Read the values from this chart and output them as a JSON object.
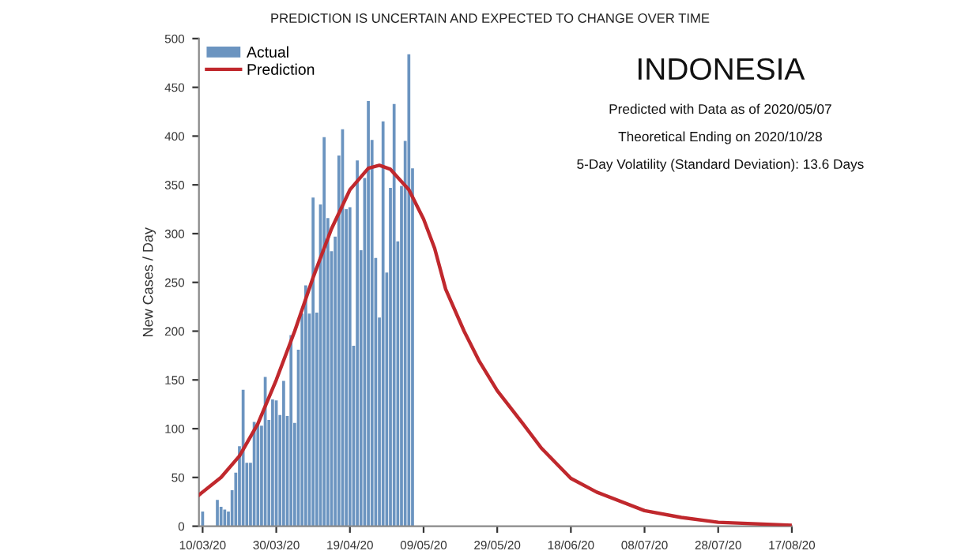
{
  "chart_data": {
    "type": "bar",
    "title": "PREDICTION IS UNCERTAIN AND EXPECTED TO CHANGE OVER TIME",
    "ylabel": "New Cases / Day",
    "annotations": [
      "INDONESIA",
      "Predicted with Data as of 2020/05/07",
      "Theoretical Ending on 2020/10/28",
      "5-Day Volatility (Standard Deviation): 13.6 Days"
    ],
    "xlim": [
      "2020-03-09",
      "2020-08-17"
    ],
    "xticks": [
      {
        "value": "2020-03-10",
        "label": "10/03/20"
      },
      {
        "value": "2020-03-30",
        "label": "30/03/20"
      },
      {
        "value": "2020-04-19",
        "label": "19/04/20"
      },
      {
        "value": "2020-05-09",
        "label": "09/05/20"
      },
      {
        "value": "2020-05-29",
        "label": "29/05/20"
      },
      {
        "value": "2020-06-18",
        "label": "18/06/20"
      },
      {
        "value": "2020-07-08",
        "label": "08/07/20"
      },
      {
        "value": "2020-07-28",
        "label": "28/07/20"
      },
      {
        "value": "2020-08-17",
        "label": "17/08/20"
      }
    ],
    "ylim": [
      0,
      500
    ],
    "yticks": [
      0,
      50,
      100,
      150,
      200,
      250,
      300,
      350,
      400,
      450,
      500
    ],
    "grid": false,
    "legend": "top left",
    "series": [
      {
        "name": "Actual",
        "color": "#6b94c0",
        "x": [
          "2020-03-10",
          "2020-03-11",
          "2020-03-12",
          "2020-03-13",
          "2020-03-14",
          "2020-03-15",
          "2020-03-16",
          "2020-03-17",
          "2020-03-18",
          "2020-03-19",
          "2020-03-20",
          "2020-03-21",
          "2020-03-22",
          "2020-03-23",
          "2020-03-24",
          "2020-03-25",
          "2020-03-26",
          "2020-03-27",
          "2020-03-28",
          "2020-03-29",
          "2020-03-30",
          "2020-03-31",
          "2020-04-01",
          "2020-04-02",
          "2020-04-03",
          "2020-04-04",
          "2020-04-05",
          "2020-04-06",
          "2020-04-07",
          "2020-04-08",
          "2020-04-09",
          "2020-04-10",
          "2020-04-11",
          "2020-04-12",
          "2020-04-13",
          "2020-04-14",
          "2020-04-15",
          "2020-04-16",
          "2020-04-17",
          "2020-04-18",
          "2020-04-19",
          "2020-04-20",
          "2020-04-21",
          "2020-04-22",
          "2020-04-23",
          "2020-04-24",
          "2020-04-25",
          "2020-04-26",
          "2020-04-27",
          "2020-04-28",
          "2020-04-29",
          "2020-04-30",
          "2020-05-01",
          "2020-05-02",
          "2020-05-03",
          "2020-05-04",
          "2020-05-05",
          "2020-05-06"
        ],
        "values": [
          15,
          0,
          0,
          0,
          27,
          20,
          17,
          15,
          37,
          55,
          82,
          140,
          65,
          65,
          107,
          104,
          103,
          153,
          109,
          130,
          129,
          114,
          149,
          113,
          196,
          106,
          181,
          218,
          247,
          218,
          337,
          219,
          330,
          399,
          316,
          282,
          297,
          380,
          407,
          325,
          327,
          185,
          375,
          283,
          357,
          436,
          396,
          275,
          214,
          415,
          260,
          347,
          433,
          292,
          349,
          395,
          484,
          367
        ]
      },
      {
        "name": "Prediction",
        "type": "line",
        "color": "#c0282d",
        "x": [
          "2020-03-09",
          "2020-03-15",
          "2020-03-20",
          "2020-03-25",
          "2020-03-30",
          "2020-04-04",
          "2020-04-09",
          "2020-04-14",
          "2020-04-19",
          "2020-04-24",
          "2020-04-27",
          "2020-04-30",
          "2020-05-05",
          "2020-05-09",
          "2020-05-12",
          "2020-05-15",
          "2020-05-20",
          "2020-05-24",
          "2020-05-29",
          "2020-06-05",
          "2020-06-10",
          "2020-06-18",
          "2020-06-25",
          "2020-07-08",
          "2020-07-18",
          "2020-07-28",
          "2020-08-17"
        ],
        "values": [
          32,
          50,
          72,
          105,
          150,
          200,
          255,
          305,
          345,
          367,
          370,
          366,
          345,
          315,
          285,
          243,
          200,
          170,
          139,
          105,
          80,
          49,
          35,
          16,
          9,
          4,
          1
        ]
      }
    ]
  }
}
